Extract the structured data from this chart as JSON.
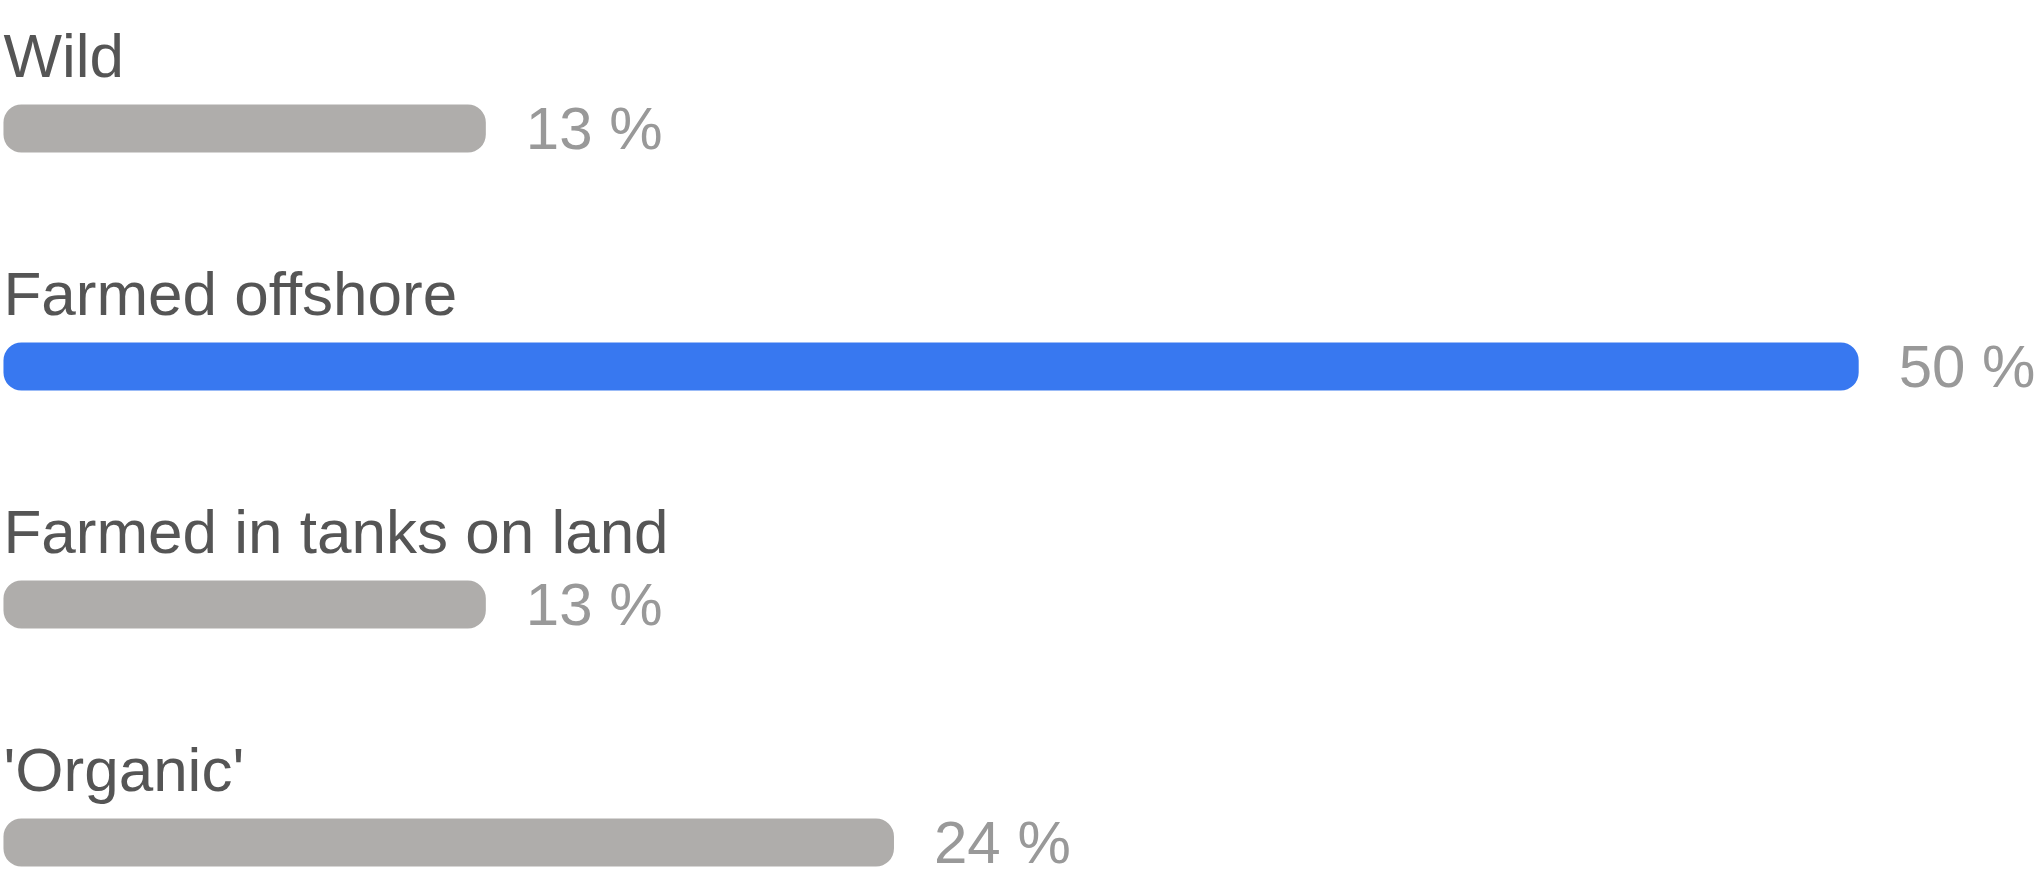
{
  "chart_data": {
    "type": "bar",
    "orientation": "horizontal",
    "categories": [
      "Wild",
      "Farmed offshore",
      "Farmed in tanks on land",
      "'Organic'"
    ],
    "values": [
      13,
      50,
      13,
      24
    ],
    "colors": [
      "#afadab",
      "#3878f0",
      "#afadab",
      "#afadab"
    ],
    "value_labels": [
      "13 %",
      "50 %",
      "13 %",
      "24 %"
    ],
    "tick_labels": false
  }
}
